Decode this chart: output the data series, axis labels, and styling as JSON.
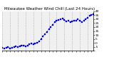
{
  "title": "Milwaukee Weather Wind Chill (Last 24 Hours)",
  "line_color": "#0000dd",
  "marker": "s",
  "marker_size": 1.5,
  "linestyle": "dotted",
  "linewidth": 0.7,
  "background_color": "#ffffff",
  "plot_bg_color": "#f0f0f0",
  "grid_color": "#999999",
  "x_values": [
    0,
    1,
    2,
    3,
    4,
    5,
    6,
    7,
    8,
    9,
    10,
    11,
    12,
    13,
    14,
    15,
    16,
    17,
    18,
    19,
    20,
    21,
    22,
    23,
    24,
    25,
    26,
    27,
    28,
    29,
    30,
    31,
    32,
    33,
    34,
    35,
    36,
    37,
    38,
    39,
    40,
    41,
    42,
    43,
    44,
    45,
    46,
    47
  ],
  "y_values": [
    -6,
    -7,
    -6,
    -5,
    -7,
    -6,
    -5,
    -4,
    -5,
    -4,
    -3,
    -3,
    -4,
    -3,
    -2,
    -1,
    -2,
    -1,
    0,
    2,
    5,
    8,
    11,
    14,
    17,
    20,
    23,
    26,
    28,
    29,
    30,
    31,
    29,
    27,
    28,
    26,
    27,
    28,
    28,
    30,
    28,
    26,
    28,
    30,
    32,
    34,
    35,
    36
  ],
  "ylim": [
    -10,
    40
  ],
  "ytick_values": [
    40,
    35,
    30,
    25,
    20,
    15,
    10,
    5,
    0,
    -5,
    -10
  ],
  "ytick_labels": [
    "40",
    "35",
    "30",
    "25",
    "20",
    "15",
    "10",
    "5",
    "0",
    "-5",
    ""
  ],
  "title_fontsize": 4.0,
  "tick_fontsize": 3.2,
  "text_color": "#000000",
  "vline_positions": [
    0,
    4,
    8,
    12,
    16,
    20,
    24,
    28,
    32,
    36,
    40,
    44,
    48
  ]
}
